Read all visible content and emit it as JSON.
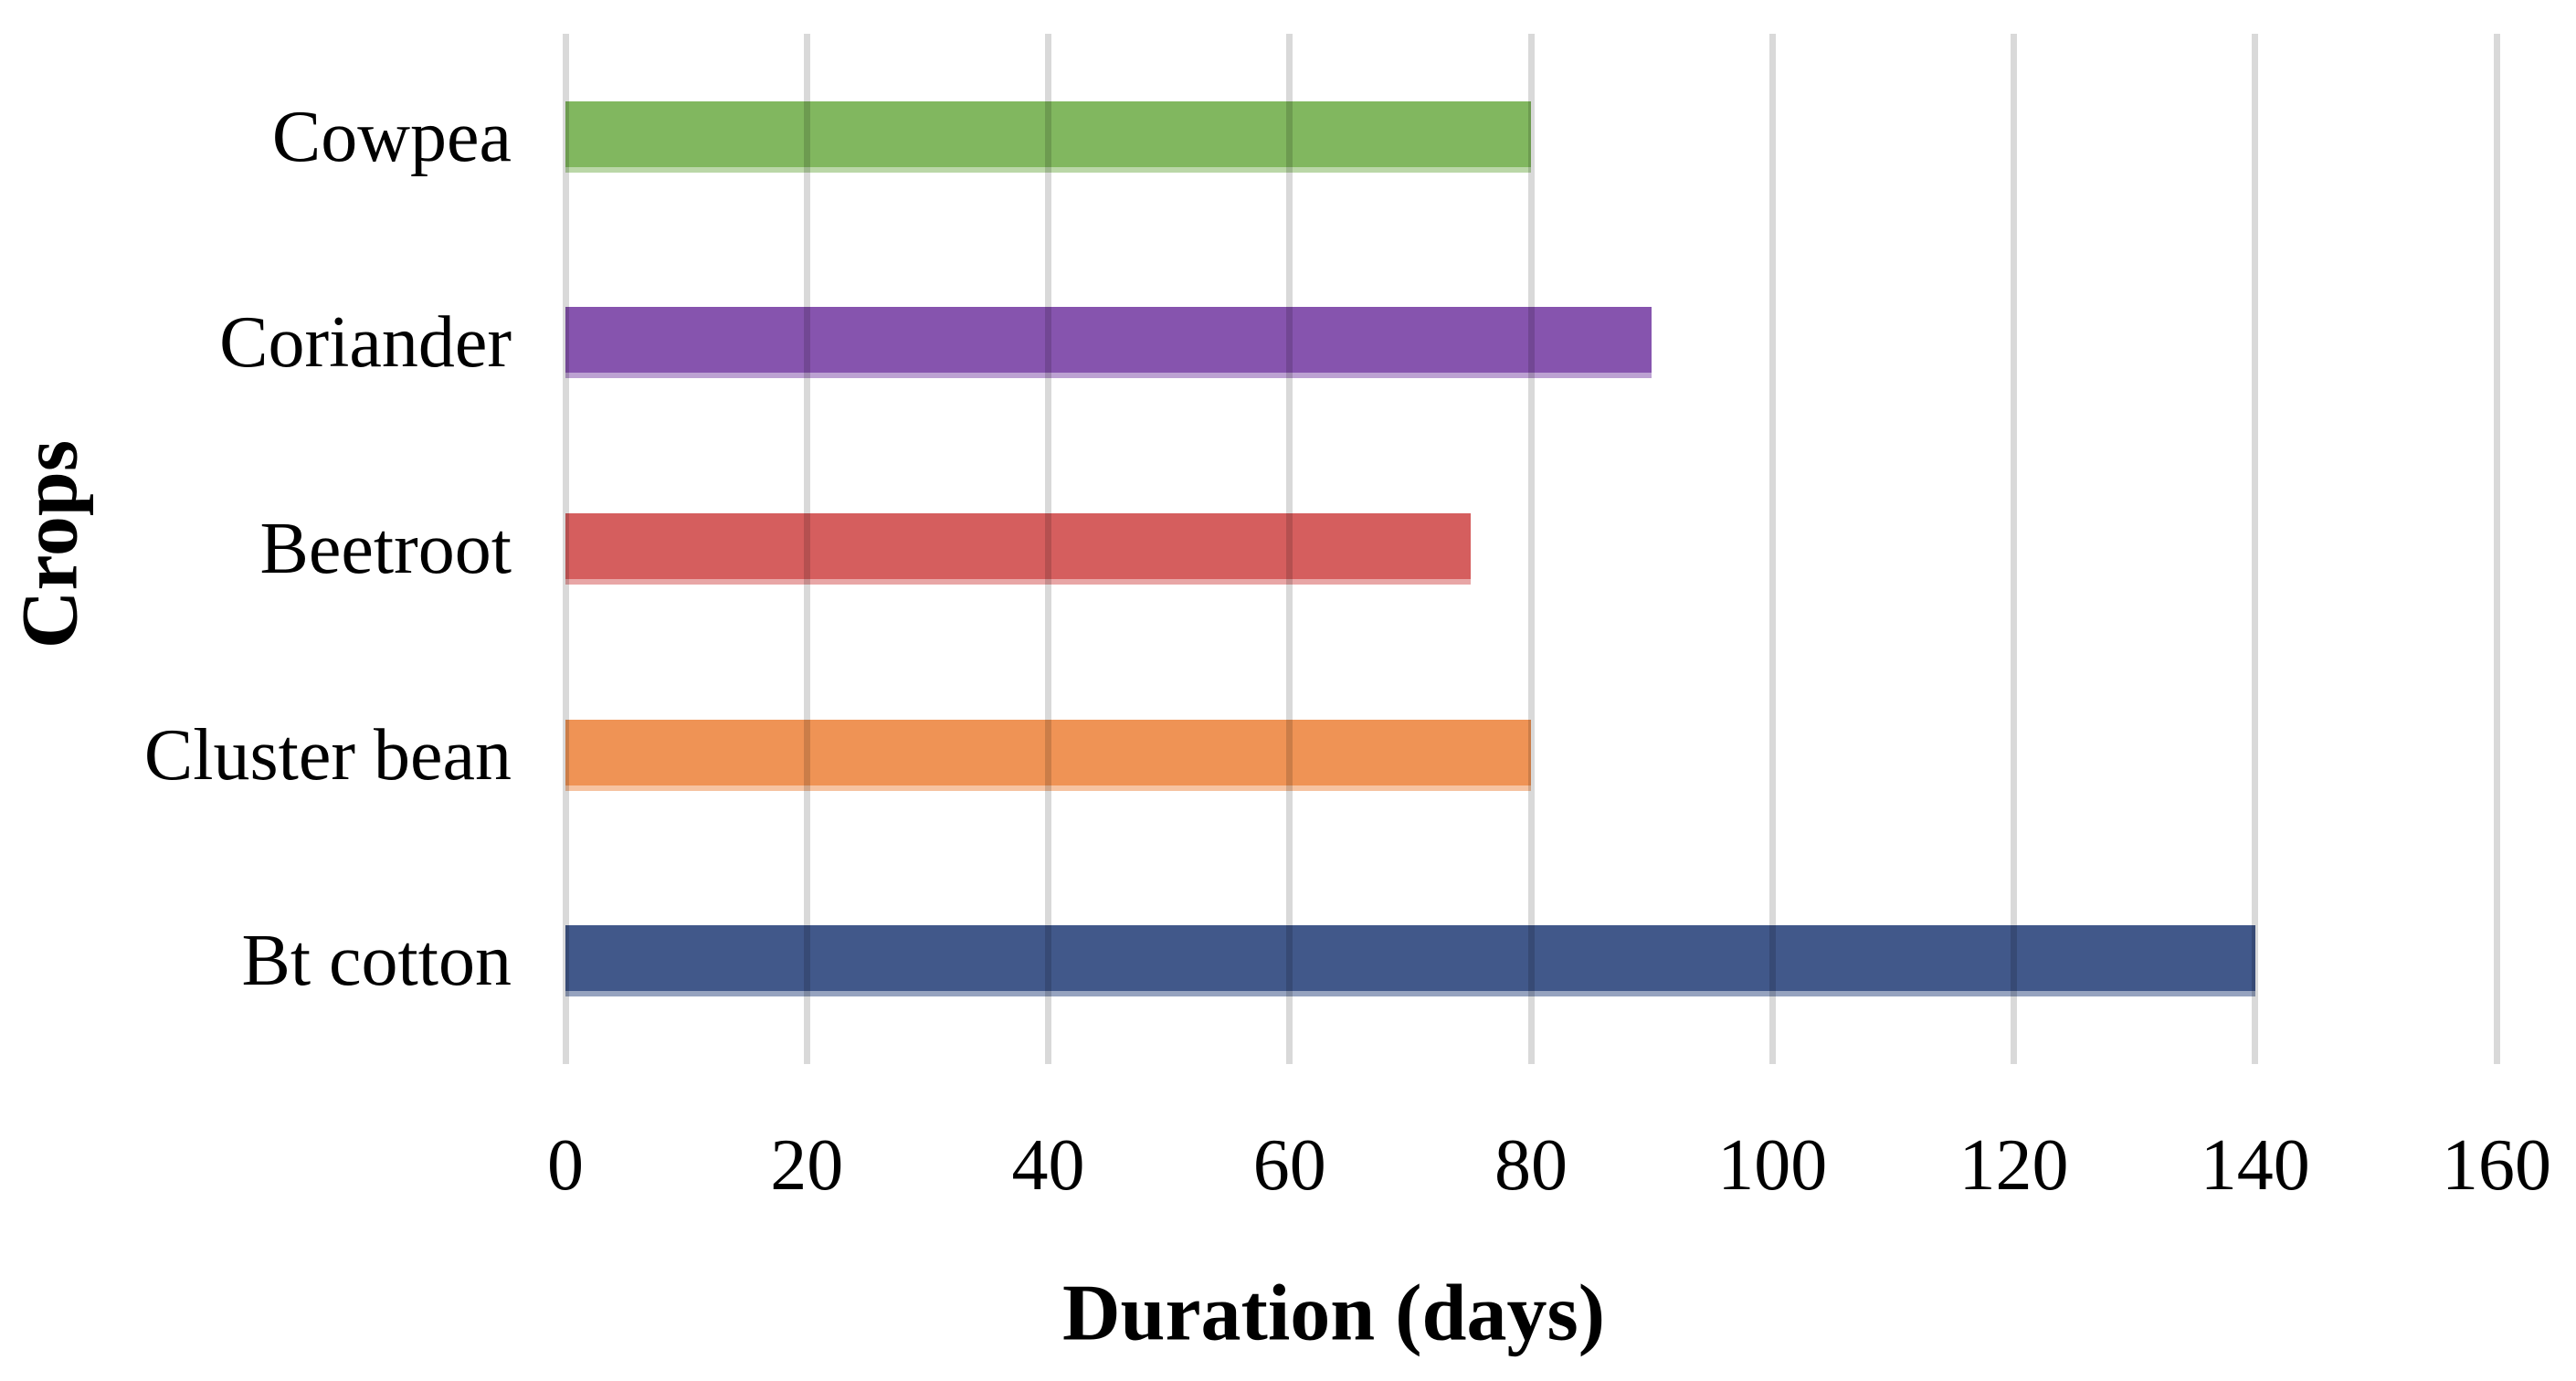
{
  "chart_data": {
    "type": "bar",
    "orientation": "horizontal",
    "title": "",
    "xlabel": "Duration (days)",
    "ylabel": "Crops",
    "categories_top_to_bottom": [
      "Cowpea",
      "Coriander",
      "Beetroot",
      "Cluster bean",
      "Bt cotton"
    ],
    "series": [
      {
        "name": "Duration (days)",
        "values": [
          80,
          90,
          75,
          80,
          140
        ]
      }
    ],
    "bar_colors": [
      "#81B75F",
      "#8654AE",
      "#D55E5E",
      "#EF9355",
      "#41588A"
    ],
    "xlim": [
      0,
      160
    ],
    "xticks": [
      0,
      20,
      40,
      60,
      80,
      100,
      120,
      140,
      160
    ],
    "grid": "vertical-gridlines-on",
    "gridline_color": "#D9D9D9",
    "legend_position": "none",
    "background_color": "#FFFFFF",
    "text_color": "#000000"
  }
}
